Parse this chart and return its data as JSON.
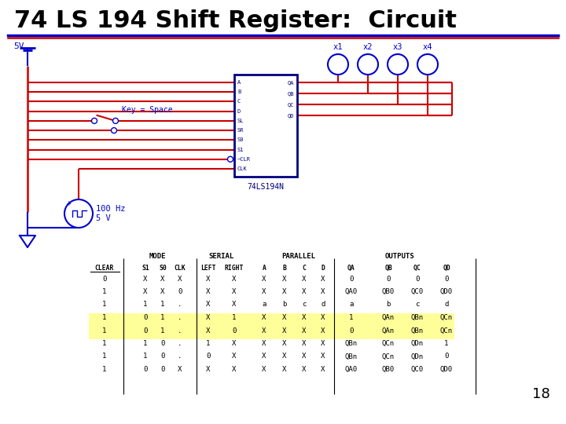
{
  "title": "74 LS 194 Shift Register:  Circuit",
  "title_color": "#000000",
  "title_fontsize": 22,
  "bg_color": "#ffffff",
  "blue": "#0000CC",
  "red": "#CC0000",
  "dark_blue": "#000080",
  "line18": "18",
  "table_rows": [
    [
      "0",
      "X",
      "X",
      "X",
      "X",
      "X",
      "X",
      "X",
      "X",
      "X",
      "0",
      "0",
      "0",
      "0"
    ],
    [
      "1",
      "X",
      "X",
      "0",
      "X",
      "X",
      "X",
      "X",
      "X",
      "X",
      "QA0",
      "QB0",
      "QC0",
      "QD0"
    ],
    [
      "1",
      "1",
      "1",
      ".",
      "X",
      "X",
      "a",
      "b",
      "c",
      "d",
      "a",
      "b",
      "c",
      "d"
    ],
    [
      "1",
      "0",
      "1",
      ".",
      "X",
      "1",
      "X",
      "X",
      "X",
      "X",
      "1",
      "QAn",
      "QBn",
      "QCn"
    ],
    [
      "1",
      "0",
      "1",
      ".",
      "X",
      "0",
      "X",
      "X",
      "X",
      "X",
      "0",
      "QAn",
      "QBn",
      "QCn"
    ],
    [
      "1",
      "1",
      "0",
      ".",
      "1",
      "X",
      "X",
      "X",
      "X",
      "X",
      "QBn",
      "QCn",
      "QDn",
      "1"
    ],
    [
      "1",
      "1",
      "0",
      ".",
      "0",
      "X",
      "X",
      "X",
      "X",
      "X",
      "QBn",
      "QCn",
      "QDn",
      "0"
    ],
    [
      "1",
      "0",
      "0",
      "X",
      "X",
      "X",
      "X",
      "X",
      "X",
      "X",
      "QA0",
      "QB0",
      "QC0",
      "QD0"
    ]
  ],
  "highlight_rows": [
    3,
    4
  ],
  "highlight_color": "#FFFF99"
}
